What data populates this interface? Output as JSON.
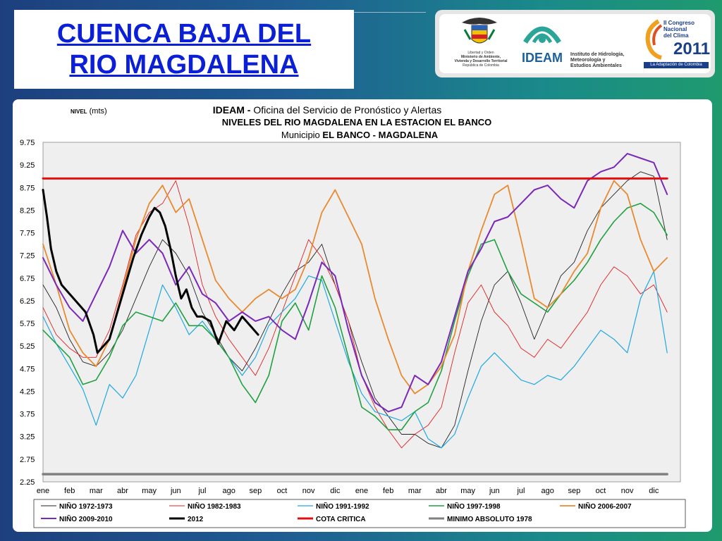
{
  "slide": {
    "title_line1": "CUENCA  BAJA  DEL",
    "title_line2": "RIO  MAGDALENA"
  },
  "logos": {
    "ministerio": {
      "icon": "colombia-coat-of-arms",
      "line1": "Libertad y Orden",
      "line2": "Ministerio de Ambiente,",
      "line3": "Vivienda y Desarrollo Territorial",
      "line4": "República de Colombia"
    },
    "ideam": {
      "name": "IDEAM",
      "desc1": "Instituto de Hidrología,",
      "desc2": "Meteorología y",
      "desc3": "Estudios Ambientales"
    },
    "congreso": {
      "line1": "II Congreso",
      "line2": "Nacional",
      "line3": "del Clima",
      "year": "2011",
      "tagline": "La Adaptación de Colombia"
    }
  },
  "chart_data": {
    "type": "line",
    "title": {
      "line1_bold": "IDEAM - ",
      "line1_rest": "Oficina del Servicio de Pronóstico y Alertas",
      "line2": "NIVELES DEL RIO MAGDALENA EN LA ESTACION EL BANCO",
      "line3_prefix": "Municipio ",
      "line3_bold": "EL BANCO - MAGDALENA"
    },
    "ylabel_bold": "NIVEL",
    "ylabel_unit": " (mts)",
    "ylim": [
      2.25,
      9.75
    ],
    "yticks": [
      "9.75",
      "9.25",
      "8.75",
      "8.25",
      "7.75",
      "7.25",
      "6.75",
      "6.25",
      "5.75",
      "5.25",
      "4.75",
      "4.25",
      "3.75",
      "3.25",
      "2.75",
      "2.25"
    ],
    "x_labels": [
      "ene",
      "feb",
      "mar",
      "abr",
      "may",
      "jun",
      "jul",
      "ago",
      "sep",
      "oct",
      "nov",
      "dic",
      "ene",
      "feb",
      "mar",
      "abr",
      "may",
      "jun",
      "jul",
      "ago",
      "sep",
      "oct",
      "nov",
      "dic"
    ],
    "x_unit": "month index (0 = ene year 1, 23 = dic year 2)",
    "grid": false,
    "legend_position": "bottom",
    "series": [
      {
        "name": "NIÑO 1972-1973",
        "color": "#222222",
        "width": 0.9,
        "x": [
          0,
          0.5,
          1,
          1.5,
          2,
          2.5,
          3,
          3.5,
          4,
          4.5,
          5,
          5.5,
          6,
          6.5,
          7,
          7.5,
          8,
          8.5,
          9,
          9.5,
          10,
          10.5,
          11,
          11.5,
          12,
          12.5,
          13,
          13.5,
          14,
          14.5,
          15,
          15.5,
          16,
          16.5,
          17,
          17.5,
          18,
          18.5,
          19,
          19.5,
          20,
          20.5,
          21,
          21.5,
          22,
          22.5,
          23,
          23.5
        ],
        "y": [
          6.6,
          6.1,
          5.4,
          4.9,
          4.8,
          5.1,
          5.6,
          6.3,
          7.0,
          7.6,
          7.3,
          6.8,
          6.0,
          5.5,
          5.0,
          4.7,
          5.2,
          5.8,
          6.4,
          6.9,
          7.1,
          7.5,
          6.6,
          5.8,
          4.9,
          4.1,
          3.7,
          3.3,
          3.3,
          3.1,
          3.0,
          3.5,
          4.7,
          5.8,
          6.6,
          6.9,
          6.2,
          5.4,
          6.1,
          6.8,
          7.1,
          7.8,
          8.3,
          8.6,
          8.9,
          9.1,
          9.0,
          7.6
        ]
      },
      {
        "name": "NIÑO 1982-1983",
        "color": "#e02020",
        "width": 0.9,
        "x": [
          0,
          0.5,
          1,
          1.5,
          2,
          2.5,
          3,
          3.5,
          4,
          4.5,
          5,
          5.5,
          6,
          6.5,
          7,
          7.5,
          8,
          8.5,
          9,
          9.5,
          10,
          10.5,
          11,
          11.5,
          12,
          12.5,
          13,
          13.5,
          14,
          14.5,
          15,
          15.5,
          16,
          16.5,
          17,
          17.5,
          18,
          18.5,
          19,
          19.5,
          20,
          20.5,
          21,
          21.5,
          22,
          22.5,
          23,
          23.5
        ],
        "y": [
          6.1,
          5.5,
          5.2,
          5.0,
          5.0,
          5.6,
          6.6,
          7.7,
          8.2,
          8.4,
          8.9,
          7.9,
          6.6,
          5.9,
          5.4,
          5.0,
          4.6,
          5.2,
          6.0,
          6.8,
          7.6,
          7.2,
          6.6,
          5.8,
          4.6,
          3.9,
          3.4,
          3.0,
          3.3,
          3.5,
          3.9,
          5.1,
          6.2,
          6.6,
          6.0,
          5.7,
          5.2,
          5.0,
          5.4,
          5.2,
          5.6,
          6.0,
          6.6,
          7.0,
          6.8,
          6.4,
          6.6,
          6.0
        ]
      },
      {
        "name": "NIÑO 1991-1992",
        "color": "#20a8e0",
        "width": 1.2,
        "x": [
          0,
          0.5,
          1,
          1.5,
          2,
          2.5,
          3,
          3.5,
          4,
          4.5,
          5,
          5.5,
          6,
          6.5,
          7,
          7.5,
          8,
          8.5,
          9,
          9.5,
          10,
          10.5,
          11,
          11.5,
          12,
          12.5,
          13,
          13.5,
          14,
          14.5,
          15,
          15.5,
          16,
          16.5,
          17,
          17.5,
          18,
          18.5,
          19,
          19.5,
          20,
          20.5,
          21,
          21.5,
          22,
          22.5,
          23,
          23.5
        ],
        "y": [
          5.9,
          5.3,
          4.8,
          4.3,
          3.5,
          4.4,
          4.1,
          4.6,
          5.6,
          6.6,
          6.1,
          5.5,
          5.8,
          5.4,
          5.0,
          4.6,
          5.0,
          5.7,
          6.0,
          6.3,
          6.8,
          6.7,
          5.8,
          4.9,
          4.2,
          3.8,
          3.7,
          3.6,
          3.8,
          3.2,
          3.0,
          3.3,
          4.1,
          4.8,
          5.1,
          4.8,
          4.5,
          4.4,
          4.6,
          4.5,
          4.8,
          5.2,
          5.6,
          5.4,
          5.1,
          6.3,
          6.9,
          5.1
        ]
      },
      {
        "name": "NIÑO 1997-1998",
        "color": "#20a040",
        "width": 1.6,
        "x": [
          0,
          0.5,
          1,
          1.5,
          2,
          2.5,
          3,
          3.5,
          4,
          4.5,
          5,
          5.5,
          6,
          6.5,
          7,
          7.5,
          8,
          8.5,
          9,
          9.5,
          10,
          10.5,
          11,
          11.5,
          12,
          12.5,
          13,
          13.5,
          14,
          14.5,
          15,
          15.5,
          16,
          16.5,
          17,
          17.5,
          18,
          18.5,
          19,
          19.5,
          20,
          20.5,
          21,
          21.5,
          22,
          22.5,
          23,
          23.5
        ],
        "y": [
          5.6,
          5.3,
          5.0,
          4.4,
          4.5,
          5.0,
          5.7,
          6.0,
          5.9,
          5.8,
          6.2,
          5.7,
          5.7,
          5.4,
          5.0,
          4.4,
          4.0,
          4.6,
          5.8,
          6.2,
          5.6,
          6.8,
          6.1,
          5.0,
          3.9,
          3.7,
          3.4,
          3.4,
          3.8,
          4.0,
          4.7,
          5.8,
          6.8,
          7.5,
          7.6,
          6.9,
          6.4,
          6.2,
          6.0,
          6.4,
          6.7,
          7.1,
          7.6,
          8.0,
          8.3,
          8.4,
          8.2,
          7.7
        ]
      },
      {
        "name": "NIÑO 2006-2007",
        "color": "#e88a30",
        "width": 1.8,
        "x": [
          0,
          0.5,
          1,
          1.5,
          2,
          2.5,
          3,
          3.5,
          4,
          4.5,
          5,
          5.5,
          6,
          6.5,
          7,
          7.5,
          8,
          8.5,
          9,
          9.5,
          10,
          10.5,
          11,
          11.5,
          12,
          12.5,
          13,
          13.5,
          14,
          14.5,
          15,
          15.5,
          16,
          16.5,
          17,
          17.5,
          18,
          18.5,
          19,
          19.5,
          20,
          20.5,
          21,
          21.5,
          22,
          22.5,
          23,
          23.5
        ],
        "y": [
          7.5,
          6.6,
          5.6,
          5.1,
          4.8,
          5.4,
          6.5,
          7.6,
          8.4,
          8.8,
          8.2,
          8.5,
          7.6,
          6.7,
          6.3,
          6.0,
          6.3,
          6.5,
          6.3,
          6.5,
          7.2,
          8.2,
          8.7,
          8.1,
          7.5,
          6.3,
          5.4,
          4.6,
          4.2,
          4.4,
          4.8,
          5.5,
          6.9,
          7.8,
          8.6,
          8.8,
          7.6,
          6.3,
          6.1,
          6.4,
          6.9,
          7.3,
          8.3,
          8.9,
          8.6,
          7.6,
          6.9,
          7.2
        ]
      },
      {
        "name": "NIÑO 2009-2010",
        "color": "#7a28b8",
        "width": 2.0,
        "x": [
          0,
          0.5,
          1,
          1.5,
          2,
          2.5,
          3,
          3.5,
          4,
          4.5,
          5,
          5.5,
          6,
          6.5,
          7,
          7.5,
          8,
          8.5,
          9,
          9.5,
          10,
          10.5,
          11,
          11.5,
          12,
          12.5,
          13,
          13.5,
          14,
          14.5,
          15,
          15.5,
          16,
          16.5,
          17,
          17.5,
          18,
          18.5,
          19,
          19.5,
          20,
          20.5,
          21,
          21.5,
          22,
          22.5,
          23,
          23.5
        ],
        "y": [
          7.2,
          6.6,
          6.1,
          5.8,
          6.4,
          7.0,
          7.8,
          7.3,
          7.6,
          7.3,
          6.6,
          7.0,
          6.4,
          6.2,
          5.8,
          6.0,
          5.8,
          5.9,
          5.6,
          5.4,
          6.2,
          7.1,
          6.8,
          5.6,
          4.6,
          4.0,
          3.8,
          3.9,
          4.6,
          4.4,
          4.9,
          5.9,
          6.9,
          7.4,
          8.0,
          8.1,
          8.4,
          8.7,
          8.8,
          8.5,
          8.3,
          8.9,
          9.1,
          9.2,
          9.5,
          9.4,
          9.3,
          8.6
        ]
      },
      {
        "name": "2012",
        "color": "#000000",
        "width": 3.0,
        "x": [
          0,
          0.15,
          0.3,
          0.5,
          0.7,
          1,
          1.3,
          1.6,
          1.9,
          2.05,
          2.2,
          2.5,
          2.8,
          3.1,
          3.4,
          3.7,
          4,
          4.2,
          4.4,
          4.6,
          4.8,
          5,
          5.2,
          5.4,
          5.6,
          5.8,
          6,
          6.3,
          6.6,
          6.9,
          7.2,
          7.5,
          7.8,
          8.1
        ],
        "y": [
          8.7,
          8.1,
          7.4,
          6.9,
          6.6,
          6.4,
          6.2,
          6.0,
          5.5,
          5.1,
          5.2,
          5.4,
          6.0,
          6.6,
          7.2,
          7.7,
          8.1,
          8.3,
          8.2,
          7.9,
          7.4,
          6.8,
          6.3,
          6.5,
          6.1,
          5.9,
          5.9,
          5.8,
          5.3,
          5.8,
          5.6,
          5.9,
          5.7,
          5.5
        ]
      },
      {
        "name": "COTA CRITICA",
        "color": "#e01010",
        "width": 3.0,
        "x": [
          0,
          23.5
        ],
        "y": [
          8.95,
          8.95
        ]
      },
      {
        "name": "MINIMO ABSOLUTO 1978",
        "color": "#808080",
        "width": 3.5,
        "x": [
          0,
          23.5
        ],
        "y": [
          2.42,
          2.42
        ]
      }
    ]
  }
}
